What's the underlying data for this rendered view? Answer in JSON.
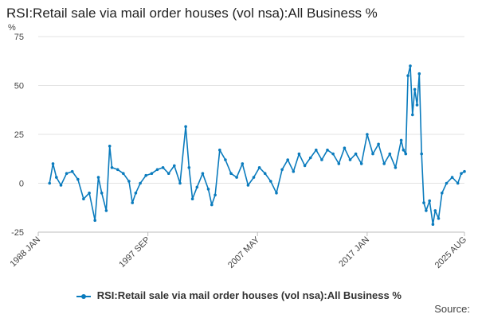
{
  "chart_data": {
    "type": "line",
    "title": "RSI:Retail sale via mail order houses (vol nsa):All Business %",
    "y_unit": "%",
    "ylim": [
      -25,
      75
    ],
    "yticks": [
      -25,
      0,
      25,
      50,
      75
    ],
    "x_tick_labels": [
      "1988 JAN",
      "1997 SEP",
      "2007 MAY",
      "2017 JAN",
      "2025 AUG"
    ],
    "x_tick_years": [
      1988.0,
      1997.67,
      2007.33,
      2017.0,
      2025.58
    ],
    "grid": "horizontal",
    "legend_position": "bottom",
    "series": [
      {
        "name": "RSI:Retail sale via mail order houses (vol nsa):All Business %",
        "color": "#0a7bbd",
        "x": [
          1989.0,
          1989.3,
          1989.6,
          1990.0,
          1990.5,
          1991.0,
          1991.5,
          1992.0,
          1992.5,
          1993.0,
          1993.3,
          1993.6,
          1994.0,
          1994.3,
          1994.5,
          1995.0,
          1995.5,
          1996.0,
          1996.3,
          1996.6,
          1997.0,
          1997.5,
          1998.0,
          1998.5,
          1999.0,
          1999.5,
          2000.0,
          2000.5,
          2001.0,
          2001.3,
          2001.6,
          2002.0,
          2002.5,
          2003.0,
          2003.3,
          2003.6,
          2004.0,
          2004.5,
          2005.0,
          2005.5,
          2006.0,
          2006.5,
          2007.0,
          2007.5,
          2008.0,
          2008.5,
          2009.0,
          2009.5,
          2010.0,
          2010.5,
          2011.0,
          2011.5,
          2012.0,
          2012.5,
          2013.0,
          2013.5,
          2014.0,
          2014.5,
          2015.0,
          2015.5,
          2016.0,
          2016.5,
          2017.0,
          2017.5,
          2018.0,
          2018.5,
          2019.0,
          2019.5,
          2020.0,
          2020.2,
          2020.4,
          2020.6,
          2020.8,
          2021.0,
          2021.2,
          2021.4,
          2021.6,
          2021.8,
          2022.0,
          2022.2,
          2022.5,
          2022.8,
          2023.0,
          2023.3,
          2023.6,
          2024.0,
          2024.5,
          2025.0,
          2025.3,
          2025.58
        ],
        "y": [
          0,
          10,
          3,
          -1,
          5,
          6,
          2,
          -8,
          -5,
          -19,
          3,
          -5,
          -14,
          19,
          8,
          7,
          5,
          1,
          -10,
          -5,
          0,
          4,
          5,
          7,
          8,
          5,
          9,
          0,
          29,
          8,
          -8,
          -2,
          5,
          -3,
          -11,
          -6,
          17,
          12,
          5,
          3,
          10,
          -1,
          3,
          8,
          5,
          1,
          -5,
          7,
          12,
          6,
          15,
          9,
          13,
          17,
          12,
          17,
          15,
          10,
          18,
          12,
          15,
          10,
          25,
          15,
          20,
          10,
          15,
          8,
          22,
          17,
          15,
          55,
          60,
          35,
          48,
          40,
          56,
          15,
          -10,
          -14,
          -9,
          -21,
          -14,
          -18,
          -5,
          0,
          3,
          0,
          5,
          6
        ]
      }
    ]
  },
  "footer": {
    "source_label": "Source:"
  }
}
